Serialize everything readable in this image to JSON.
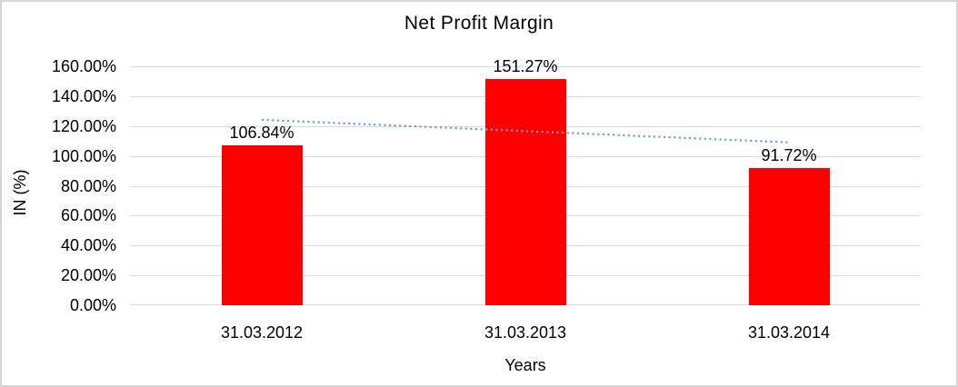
{
  "window": {
    "background": "#ffffff",
    "border_color": "#d6d6d6"
  },
  "chart_data": {
    "type": "bar",
    "title": "Net Profit Margin",
    "xlabel": "Years",
    "ylabel": "IN (%)",
    "categories": [
      "31.03.2012",
      "31.03.2013",
      "31.03.2014"
    ],
    "values": [
      106.84,
      151.27,
      91.72
    ],
    "data_labels": [
      "106.84%",
      "151.27%",
      "91.72%"
    ],
    "ylim": [
      0,
      160
    ],
    "y_tick_step": 20,
    "y_tick_labels_top_to_bottom": [
      "160.00%",
      "140.00%",
      "120.00%",
      "100.00%",
      "80.00%",
      "60.00%",
      "40.00%",
      "20.00%",
      "0.00%"
    ],
    "grid": true,
    "legend": "none",
    "bar_color": "#ff0000",
    "gridline_color": "#d9d9d9",
    "text_color": "#000000",
    "trendline": {
      "type": "linear",
      "style": "dotted",
      "color": "#6f9ed4",
      "start_value": 124.17,
      "end_value": 109.05
    }
  }
}
